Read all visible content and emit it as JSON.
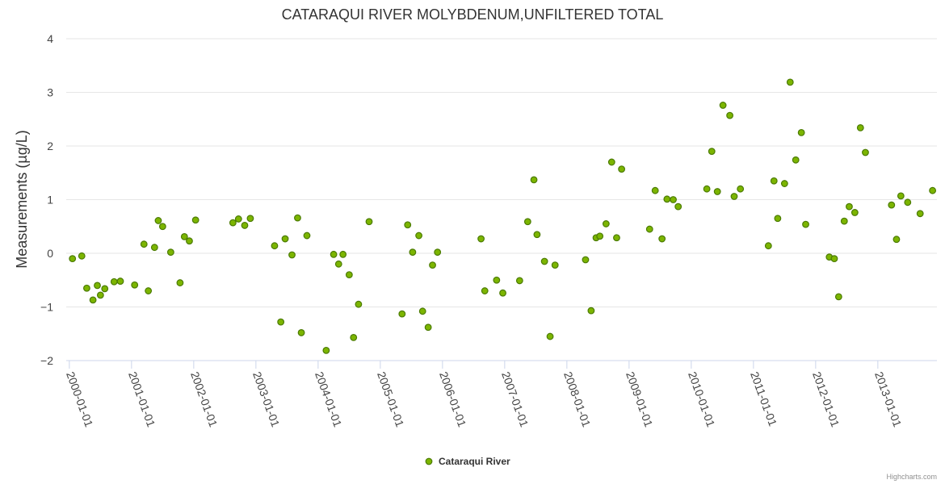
{
  "chart_data": {
    "type": "scatter",
    "title": "CATARAQUI RIVER MOLYBDENUM,UNFILTERED TOTAL",
    "xlabel": "",
    "ylabel": "Measurements (µg/L)",
    "ylim": [
      -2,
      4
    ],
    "yticks": [
      "−2",
      "−1",
      "0",
      "1",
      "2",
      "3",
      "4"
    ],
    "xlim": [
      1999.95,
      2013.95
    ],
    "xticks": [
      "2000-01-01",
      "2001-01-01",
      "2002-01-01",
      "2003-01-01",
      "2004-01-01",
      "2005-01-01",
      "2006-01-01",
      "2007-01-01",
      "2008-01-01",
      "2009-01-01",
      "2010-01-01",
      "2011-01-01",
      "2012-01-01",
      "2013-01-01"
    ],
    "grid": true,
    "legend_position": "bottom-center",
    "series": [
      {
        "name": "Cataraqui River",
        "color": "#7cb500",
        "edge_color": "#4a7a00",
        "points": [
          [
            2000.05,
            -0.1
          ],
          [
            2000.2,
            -0.05
          ],
          [
            2000.28,
            -0.65
          ],
          [
            2000.38,
            -0.87
          ],
          [
            2000.45,
            -0.6
          ],
          [
            2000.5,
            -0.78
          ],
          [
            2000.57,
            -0.66
          ],
          [
            2000.72,
            -0.53
          ],
          [
            2000.82,
            -0.52
          ],
          [
            2001.05,
            -0.59
          ],
          [
            2001.2,
            0.17
          ],
          [
            2001.27,
            -0.7
          ],
          [
            2001.37,
            0.11
          ],
          [
            2001.43,
            0.61
          ],
          [
            2001.5,
            0.5
          ],
          [
            2001.63,
            0.02
          ],
          [
            2001.78,
            -0.55
          ],
          [
            2001.85,
            0.31
          ],
          [
            2001.93,
            0.23
          ],
          [
            2002.03,
            0.62
          ],
          [
            2002.63,
            0.57
          ],
          [
            2002.72,
            0.64
          ],
          [
            2002.82,
            0.52
          ],
          [
            2002.91,
            0.65
          ],
          [
            2003.3,
            0.14
          ],
          [
            2003.4,
            -1.28
          ],
          [
            2003.47,
            0.27
          ],
          [
            2003.58,
            -0.03
          ],
          [
            2003.67,
            0.66
          ],
          [
            2003.73,
            -1.48
          ],
          [
            2003.82,
            0.33
          ],
          [
            2004.13,
            -1.81
          ],
          [
            2004.25,
            -0.02
          ],
          [
            2004.33,
            -0.2
          ],
          [
            2004.4,
            -0.02
          ],
          [
            2004.5,
            -0.4
          ],
          [
            2004.57,
            -1.57
          ],
          [
            2004.65,
            -0.95
          ],
          [
            2004.82,
            0.59
          ],
          [
            2005.35,
            -1.13
          ],
          [
            2005.44,
            0.53
          ],
          [
            2005.52,
            0.02
          ],
          [
            2005.62,
            0.33
          ],
          [
            2005.68,
            -1.08
          ],
          [
            2005.77,
            -1.38
          ],
          [
            2005.84,
            -0.22
          ],
          [
            2005.92,
            0.02
          ],
          [
            2006.62,
            0.27
          ],
          [
            2006.68,
            -0.7
          ],
          [
            2006.87,
            -0.5
          ],
          [
            2006.97,
            -0.74
          ],
          [
            2007.24,
            -0.51
          ],
          [
            2007.37,
            0.59
          ],
          [
            2007.47,
            1.37
          ],
          [
            2007.52,
            0.35
          ],
          [
            2007.64,
            -0.15
          ],
          [
            2007.73,
            -1.55
          ],
          [
            2007.81,
            -0.22
          ],
          [
            2008.3,
            -0.12
          ],
          [
            2008.39,
            -1.07
          ],
          [
            2008.47,
            0.29
          ],
          [
            2008.53,
            0.32
          ],
          [
            2008.63,
            0.55
          ],
          [
            2008.72,
            1.7
          ],
          [
            2008.8,
            0.29
          ],
          [
            2008.88,
            1.57
          ],
          [
            2009.33,
            0.45
          ],
          [
            2009.42,
            1.17
          ],
          [
            2009.53,
            0.27
          ],
          [
            2009.61,
            1.01
          ],
          [
            2009.71,
            1.0
          ],
          [
            2009.79,
            0.87
          ],
          [
            2010.25,
            1.2
          ],
          [
            2010.33,
            1.9
          ],
          [
            2010.42,
            1.15
          ],
          [
            2010.51,
            2.76
          ],
          [
            2010.62,
            2.57
          ],
          [
            2010.69,
            1.06
          ],
          [
            2010.79,
            1.2
          ],
          [
            2011.24,
            0.14
          ],
          [
            2011.33,
            1.35
          ],
          [
            2011.39,
            0.65
          ],
          [
            2011.5,
            1.3
          ],
          [
            2011.59,
            3.19
          ],
          [
            2011.68,
            1.74
          ],
          [
            2011.77,
            2.25
          ],
          [
            2011.84,
            0.54
          ],
          [
            2012.22,
            -0.07
          ],
          [
            2012.3,
            -0.1
          ],
          [
            2012.37,
            -0.81
          ],
          [
            2012.46,
            0.6
          ],
          [
            2012.54,
            0.87
          ],
          [
            2012.63,
            0.76
          ],
          [
            2012.72,
            2.34
          ],
          [
            2012.8,
            1.88
          ],
          [
            2013.22,
            0.9
          ],
          [
            2013.3,
            0.26
          ],
          [
            2013.37,
            1.07
          ],
          [
            2013.48,
            0.95
          ],
          [
            2013.68,
            0.74
          ],
          [
            2013.88,
            1.17
          ]
        ]
      }
    ]
  },
  "credits": "Highcharts.com"
}
